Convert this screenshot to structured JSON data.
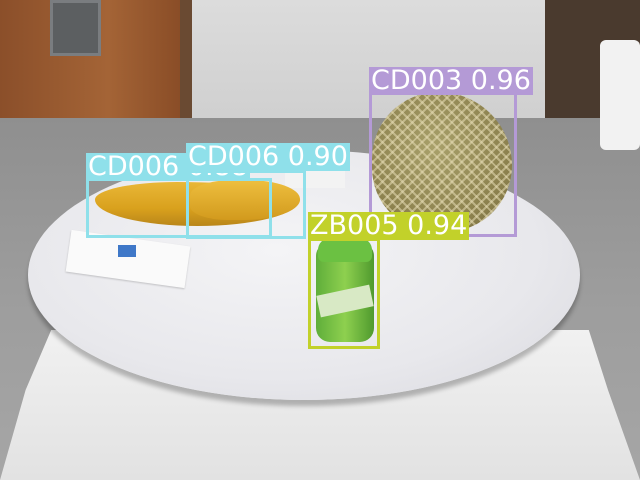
{
  "colors": {
    "cd003": "#b49ad6",
    "cd006": "#8fe0ea",
    "zb005": "#c2d12a"
  },
  "detections": [
    {
      "label": "CD003 0.96",
      "class": "CD003",
      "score": 0.96
    },
    {
      "label": "CD006 0.90",
      "class": "CD006",
      "score": 0.9
    },
    {
      "label": "CD006 0.88",
      "class": "CD006",
      "score": 0.88
    },
    {
      "label": "ZB005 0.94",
      "class": "ZB005",
      "score": 0.94
    }
  ]
}
